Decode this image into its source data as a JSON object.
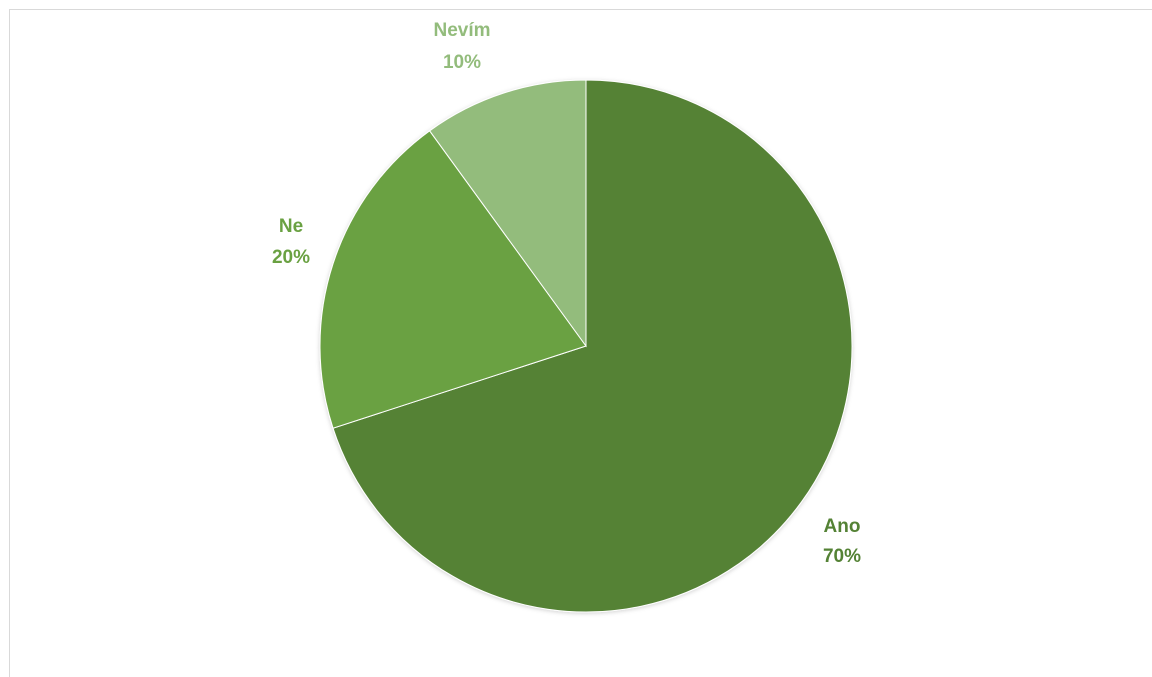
{
  "chart_data": {
    "type": "pie",
    "title": "",
    "start_angle_deg": 0,
    "direction": "clockwise",
    "categories": [
      "Ano",
      "Ne",
      "Nevím"
    ],
    "values": [
      70,
      20,
      10
    ],
    "data_labels": [
      {
        "category": "Ano",
        "percent": "70%"
      },
      {
        "category": "Ne",
        "percent": "20%"
      },
      {
        "category": "Nevím",
        "percent": "10%"
      }
    ],
    "colors": [
      "#548235",
      "#6aa142",
      "#93bc7c"
    ],
    "label_colors": [
      "#548235",
      "#6aa142",
      "#93bc7c"
    ],
    "legend": "none"
  }
}
